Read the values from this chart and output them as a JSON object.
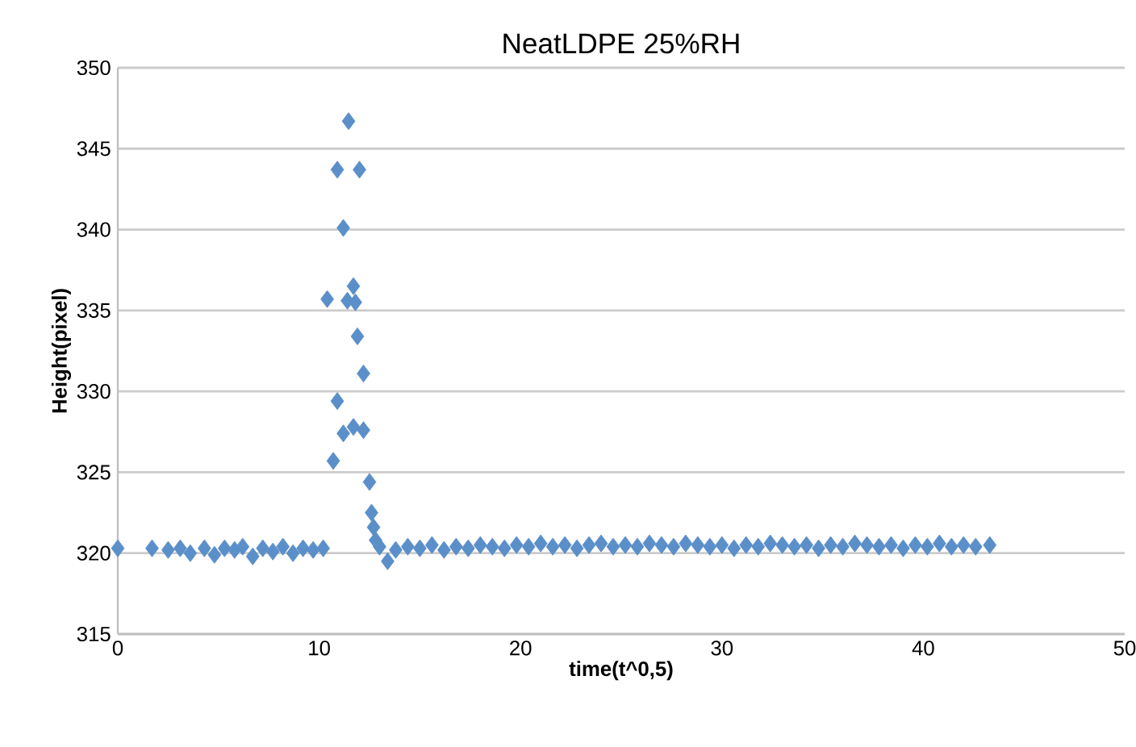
{
  "chart_data": {
    "type": "scatter",
    "title": "NeatLDPE 25%RH",
    "xlabel": "time(t^0,5)",
    "ylabel": "Height(pixel)",
    "x": [
      0,
      1.7,
      2.5,
      3.1,
      3.6,
      4.3,
      4.8,
      5.3,
      5.8,
      6.2,
      6.7,
      7.2,
      7.7,
      8.2,
      8.7,
      9.2,
      9.7,
      10.2,
      10.4,
      10.7,
      10.9,
      10.9,
      11.2,
      11.2,
      11.4,
      11.46,
      11.7,
      11.7,
      11.8,
      11.9,
      12.0,
      12.2,
      12.2,
      12.5,
      12.6,
      12.7,
      12.8,
      13.0,
      13.4,
      13.8,
      14.4,
      15.0,
      15.6,
      16.2,
      16.8,
      17.4,
      18.0,
      18.6,
      19.2,
      19.8,
      20.4,
      21.0,
      21.6,
      22.2,
      22.8,
      23.4,
      24.0,
      24.6,
      25.2,
      25.8,
      26.4,
      27.0,
      27.6,
      28.2,
      28.8,
      29.4,
      30.0,
      30.6,
      31.2,
      31.8,
      32.4,
      33.0,
      33.6,
      34.2,
      34.8,
      35.4,
      36.0,
      36.6,
      37.2,
      37.8,
      38.4,
      39.0,
      39.6,
      40.2,
      40.8,
      41.4,
      42.0,
      42.6,
      43.3
    ],
    "values": [
      320.3,
      320.3,
      320.2,
      320.3,
      320.0,
      320.3,
      319.9,
      320.3,
      320.2,
      320.4,
      319.8,
      320.3,
      320.1,
      320.4,
      320.0,
      320.3,
      320.2,
      320.3,
      335.7,
      325.7,
      343.7,
      329.4,
      340.1,
      327.4,
      335.6,
      346.7,
      336.5,
      327.8,
      335.5,
      333.4,
      343.7,
      331.1,
      327.6,
      324.4,
      322.5,
      321.6,
      320.8,
      320.4,
      319.5,
      320.2,
      320.4,
      320.3,
      320.5,
      320.2,
      320.4,
      320.3,
      320.5,
      320.4,
      320.3,
      320.5,
      320.4,
      320.6,
      320.4,
      320.5,
      320.3,
      320.5,
      320.6,
      320.4,
      320.5,
      320.4,
      320.6,
      320.5,
      320.4,
      320.6,
      320.5,
      320.4,
      320.5,
      320.3,
      320.5,
      320.4,
      320.6,
      320.5,
      320.4,
      320.5,
      320.3,
      320.5,
      320.4,
      320.6,
      320.5,
      320.4,
      320.5,
      320.3,
      320.5,
      320.4,
      320.6,
      320.4,
      320.5,
      320.4,
      320.5
    ],
    "color": "#5b8fc9",
    "marker": "diamond",
    "grid": "y",
    "xlim": [
      0,
      50
    ],
    "ylim": [
      315,
      350
    ],
    "xticks": [
      0,
      10,
      20,
      30,
      40,
      50
    ],
    "yticks": [
      315,
      320,
      325,
      330,
      335,
      340,
      345,
      350
    ]
  }
}
